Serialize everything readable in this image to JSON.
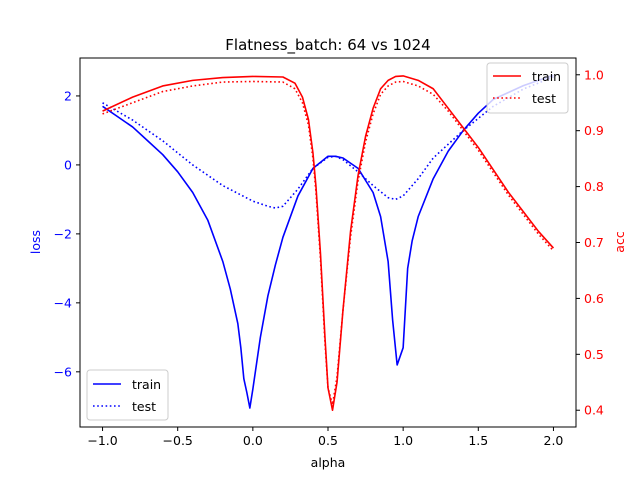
{
  "chart_data": {
    "type": "line",
    "title": "Flatness_batch: 64 vs 1024",
    "xlabel": "alpha",
    "xlim": [
      -1.15,
      2.15
    ],
    "xticks": [
      -1.0,
      -0.5,
      0.0,
      0.5,
      1.0,
      1.5,
      2.0
    ],
    "xtick_labels": [
      "−1.0",
      "−0.5",
      "0.0",
      "0.5",
      "1.0",
      "1.5",
      "2.0"
    ],
    "grid": false,
    "left_axis": {
      "label": "loss",
      "color": "#0000ff",
      "ylim": [
        -7.6,
        3.1
      ],
      "ticks": [
        -6,
        -4,
        -2,
        0,
        2
      ],
      "tick_labels": [
        "−6",
        "−4",
        "−2",
        "0",
        "2"
      ],
      "legend": "bottom-left"
    },
    "right_axis": {
      "label": "acc",
      "color": "#ff0000",
      "ylim": [
        0.37,
        1.03
      ],
      "ticks": [
        0.4,
        0.5,
        0.6,
        0.7,
        0.8,
        0.9,
        1.0
      ],
      "tick_labels": [
        "0.4",
        "0.5",
        "0.6",
        "0.7",
        "0.8",
        "0.9",
        "1.0"
      ],
      "legend": "top-right"
    },
    "series": [
      {
        "name": "train",
        "axis": "left",
        "color": "#0000ff",
        "style": "solid",
        "x": [
          -1.0,
          -0.9,
          -0.8,
          -0.7,
          -0.6,
          -0.5,
          -0.4,
          -0.3,
          -0.2,
          -0.15,
          -0.1,
          -0.08,
          -0.06,
          -0.04,
          -0.02,
          0.0,
          0.05,
          0.1,
          0.15,
          0.2,
          0.3,
          0.4,
          0.5,
          0.55,
          0.6,
          0.7,
          0.8,
          0.85,
          0.9,
          0.93,
          0.96,
          1.0,
          1.03,
          1.06,
          1.1,
          1.2,
          1.3,
          1.4,
          1.5,
          1.6,
          1.7,
          1.8,
          1.9,
          2.0
        ],
        "y": [
          1.7,
          1.4,
          1.1,
          0.7,
          0.3,
          -0.2,
          -0.8,
          -1.6,
          -2.8,
          -3.6,
          -4.6,
          -5.3,
          -6.2,
          -6.6,
          -7.05,
          -6.5,
          -5.0,
          -3.8,
          -2.9,
          -2.1,
          -0.9,
          -0.1,
          0.25,
          0.25,
          0.2,
          -0.1,
          -0.8,
          -1.5,
          -2.8,
          -4.5,
          -5.8,
          -5.3,
          -3.0,
          -2.2,
          -1.5,
          -0.4,
          0.4,
          1.0,
          1.5,
          1.9,
          2.1,
          2.3,
          2.45,
          2.6
        ]
      },
      {
        "name": "test",
        "axis": "left",
        "color": "#0000ff",
        "style": "dotted",
        "x": [
          -1.0,
          -0.8,
          -0.6,
          -0.4,
          -0.2,
          0.0,
          0.1,
          0.15,
          0.2,
          0.3,
          0.4,
          0.5,
          0.55,
          0.6,
          0.7,
          0.8,
          0.9,
          0.95,
          1.0,
          1.1,
          1.2,
          1.4,
          1.6,
          1.8,
          2.0
        ],
        "y": [
          1.8,
          1.3,
          0.7,
          0.0,
          -0.6,
          -1.05,
          -1.2,
          -1.25,
          -1.2,
          -0.7,
          -0.1,
          0.22,
          0.25,
          0.15,
          -0.2,
          -0.6,
          -0.95,
          -1.0,
          -0.9,
          -0.4,
          0.2,
          1.0,
          1.7,
          2.2,
          2.55
        ]
      },
      {
        "name": "train",
        "axis": "right",
        "color": "#ff0000",
        "style": "solid",
        "x": [
          -1.0,
          -0.8,
          -0.6,
          -0.4,
          -0.2,
          0.0,
          0.2,
          0.28,
          0.33,
          0.37,
          0.4,
          0.42,
          0.45,
          0.48,
          0.5,
          0.53,
          0.56,
          0.6,
          0.65,
          0.7,
          0.75,
          0.8,
          0.85,
          0.9,
          0.95,
          1.0,
          1.1,
          1.2,
          1.3,
          1.4,
          1.5,
          1.6,
          1.7,
          1.8,
          1.9,
          2.0
        ],
        "y": [
          0.935,
          0.96,
          0.98,
          0.99,
          0.995,
          0.997,
          0.996,
          0.985,
          0.96,
          0.92,
          0.86,
          0.8,
          0.68,
          0.53,
          0.44,
          0.4,
          0.45,
          0.58,
          0.72,
          0.82,
          0.89,
          0.94,
          0.975,
          0.99,
          0.997,
          0.998,
          0.99,
          0.975,
          0.94,
          0.905,
          0.87,
          0.83,
          0.79,
          0.755,
          0.72,
          0.69
        ]
      },
      {
        "name": "test",
        "axis": "right",
        "color": "#ff0000",
        "style": "dotted",
        "x": [
          -1.0,
          -0.8,
          -0.6,
          -0.4,
          -0.2,
          0.0,
          0.2,
          0.28,
          0.33,
          0.37,
          0.4,
          0.42,
          0.45,
          0.48,
          0.5,
          0.53,
          0.56,
          0.6,
          0.65,
          0.7,
          0.75,
          0.8,
          0.85,
          0.9,
          0.95,
          1.0,
          1.1,
          1.2,
          1.3,
          1.4,
          1.5,
          1.6,
          1.7,
          1.8,
          1.9,
          2.0
        ],
        "y": [
          0.93,
          0.95,
          0.97,
          0.98,
          0.987,
          0.988,
          0.987,
          0.975,
          0.95,
          0.91,
          0.85,
          0.79,
          0.67,
          0.52,
          0.44,
          0.41,
          0.46,
          0.58,
          0.71,
          0.81,
          0.88,
          0.93,
          0.965,
          0.98,
          0.987,
          0.988,
          0.98,
          0.965,
          0.935,
          0.9,
          0.865,
          0.825,
          0.785,
          0.75,
          0.715,
          0.685
        ]
      }
    ]
  }
}
